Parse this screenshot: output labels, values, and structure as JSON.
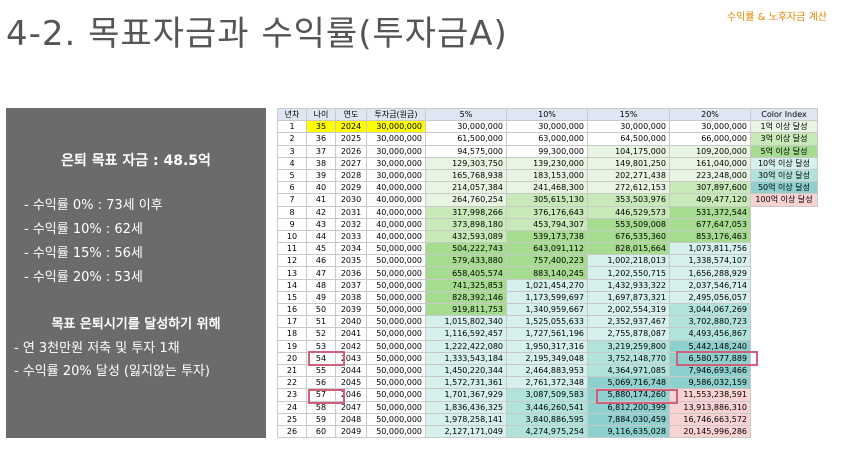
{
  "header": {
    "title": "4-2. 목표자금과 수익률(투자금A)",
    "subtitle": "수익률 & 노후자금 계산"
  },
  "panel": {
    "goal": "은퇴 목표 자금 : 48.5억",
    "rates": [
      "- 수익률  0% : 73세 이후",
      "- 수익률 10% : 62세",
      "- 수익률 15% : 56세",
      "- 수익률 20% : 53세"
    ],
    "plan_title": "목표 은퇴시기를 달성하기 위해",
    "plan": [
      "- 연 3천만원 저축 및 투자 1채",
      "- 수익률 20% 달성 (잃지않는 투자)"
    ]
  },
  "table": {
    "headers": [
      "년차",
      "나이",
      "연도",
      "투자금(원금)",
      "5%",
      "10%",
      "15%",
      "20%",
      "Color Index"
    ],
    "rows": [
      [
        "1",
        "35",
        "2024",
        "30,000,000",
        "30,000,000",
        "30,000,000",
        "30,000,000",
        "30,000,000"
      ],
      [
        "2",
        "36",
        "2025",
        "30,000,000",
        "61,500,000",
        "63,000,000",
        "64,500,000",
        "66,000,000"
      ],
      [
        "3",
        "37",
        "2026",
        "30,000,000",
        "94,575,000",
        "99,300,000",
        "104,175,000",
        "109,200,000"
      ],
      [
        "4",
        "38",
        "2027",
        "30,000,000",
        "129,303,750",
        "139,230,000",
        "149,801,250",
        "161,040,000"
      ],
      [
        "5",
        "39",
        "2028",
        "30,000,000",
        "165,768,938",
        "183,153,000",
        "202,271,438",
        "223,248,000"
      ],
      [
        "6",
        "40",
        "2029",
        "40,000,000",
        "214,057,384",
        "241,468,300",
        "272,612,153",
        "307,897,600"
      ],
      [
        "7",
        "41",
        "2030",
        "40,000,000",
        "264,760,254",
        "305,615,130",
        "353,503,976",
        "409,477,120"
      ],
      [
        "8",
        "42",
        "2031",
        "40,000,000",
        "317,998,266",
        "376,176,643",
        "446,529,573",
        "531,372,544"
      ],
      [
        "9",
        "43",
        "2032",
        "40,000,000",
        "373,898,180",
        "453,794,307",
        "553,509,008",
        "677,647,053"
      ],
      [
        "10",
        "44",
        "2033",
        "40,000,000",
        "432,593,089",
        "539,173,738",
        "676,535,360",
        "853,176,463"
      ],
      [
        "11",
        "45",
        "2034",
        "50,000,000",
        "504,222,743",
        "643,091,112",
        "828,015,664",
        "1,073,811,756"
      ],
      [
        "12",
        "46",
        "2035",
        "50,000,000",
        "579,433,880",
        "757,400,223",
        "1,002,218,013",
        "1,338,574,107"
      ],
      [
        "13",
        "47",
        "2036",
        "50,000,000",
        "658,405,574",
        "883,140,245",
        "1,202,550,715",
        "1,656,288,929"
      ],
      [
        "14",
        "48",
        "2037",
        "50,000,000",
        "741,325,853",
        "1,021,454,270",
        "1,432,933,322",
        "2,037,546,714"
      ],
      [
        "15",
        "49",
        "2038",
        "50,000,000",
        "828,392,146",
        "1,173,599,697",
        "1,697,873,321",
        "2,495,056,057"
      ],
      [
        "16",
        "50",
        "2039",
        "50,000,000",
        "919,811,753",
        "1,340,959,667",
        "2,002,554,319",
        "3,044,067,269"
      ],
      [
        "17",
        "51",
        "2040",
        "50,000,000",
        "1,015,802,340",
        "1,525,055,633",
        "2,352,937,467",
        "3,702,880,723"
      ],
      [
        "18",
        "52",
        "2041",
        "50,000,000",
        "1,116,592,457",
        "1,727,561,196",
        "2,755,878,087",
        "4,493,456,867"
      ],
      [
        "19",
        "53",
        "2042",
        "50,000,000",
        "1,222,422,080",
        "1,950,317,316",
        "3,219,259,800",
        "5,442,148,240"
      ],
      [
        "20",
        "54",
        "2043",
        "50,000,000",
        "1,333,543,184",
        "2,195,349,048",
        "3,752,148,770",
        "6,580,577,889"
      ],
      [
        "21",
        "55",
        "2044",
        "50,000,000",
        "1,450,220,344",
        "2,464,883,953",
        "4,364,971,085",
        "7,946,693,466"
      ],
      [
        "22",
        "56",
        "2045",
        "50,000,000",
        "1,572,731,361",
        "2,761,372,348",
        "5,069,716,748",
        "9,586,032,159"
      ],
      [
        "23",
        "57",
        "2046",
        "50,000,000",
        "1,701,367,929",
        "3,087,509,583",
        "5,880,174,260",
        "11,553,238,591"
      ],
      [
        "24",
        "58",
        "2047",
        "50,000,000",
        "1,836,436,325",
        "3,446,260,541",
        "6,812,200,399",
        "13,913,886,310"
      ],
      [
        "25",
        "59",
        "2048",
        "50,000,000",
        "1,978,258,141",
        "3,840,886,595",
        "7,884,030,459",
        "16,746,663,572"
      ],
      [
        "26",
        "60",
        "2049",
        "50,000,000",
        "2,127,171,049",
        "4,274,975,254",
        "9,116,635,028",
        "20,145,996,286"
      ]
    ],
    "legend": [
      "1억 이상 달성",
      "3억 이상 달성",
      "5억 이상 달성",
      "10억 이상 달성",
      "30억 이상 달성",
      "50억 이상 달성",
      "100억 이상 달성"
    ]
  },
  "colors": {
    "tier_1eok": "#e9f5e3",
    "tier_3eok": "#c8e9b8",
    "tier_5eok": "#a6dc8f",
    "tier_10eok": "#d5f0ed",
    "tier_30eok": "#b1e3dd",
    "tier_50eok": "#8dd0cd",
    "tier_100eok": "#f9d2d2",
    "highlight_box": "#d0607a",
    "age_highlight": "#ffff00"
  }
}
